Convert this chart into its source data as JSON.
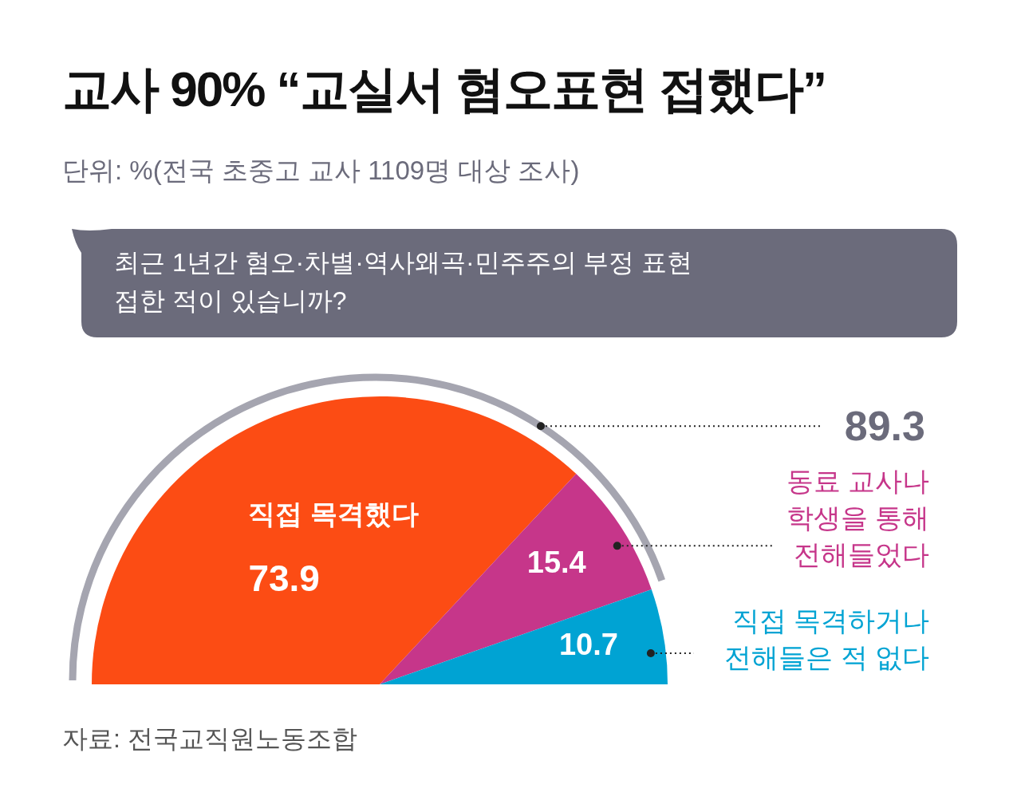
{
  "chart_data": {
    "type": "pie",
    "title": "교사 90% “교실서 혐오표현 접했다”",
    "subtitle": "단위: %(전국 초중고 교사 1109명 대상 조사)",
    "categories": [
      "직접 목격했다",
      "동료 교사나 학생을 통해 전해들었다",
      "직접 목격하거나 전해들은 적 없다"
    ],
    "values": [
      73.9,
      15.4,
      10.7
    ],
    "colors": [
      "#fc4c14",
      "#c6368a",
      "#00a3d3"
    ],
    "data_labels": true,
    "annotations": [
      "최근 1년간 혐오·차별·역사왜곡·민주주의 부정 표현 접한 적이 있습니까?",
      "89.3",
      "자료: 전국교직원노동조합"
    ]
  }
}
